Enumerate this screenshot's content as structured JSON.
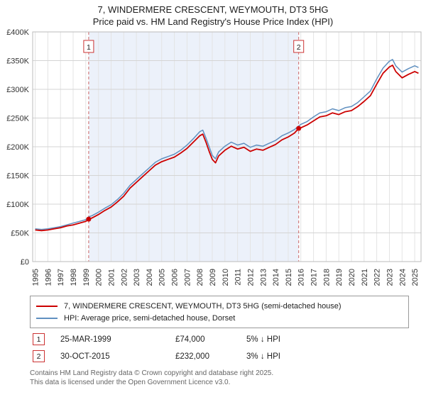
{
  "title_line1": "7, WINDERMERE CRESCENT, WEYMOUTH, DT3 5HG",
  "title_line2": "Price paid vs. HM Land Registry's House Price Index (HPI)",
  "chart_data": {
    "type": "line",
    "title": "7, WINDERMERE CRESCENT, WEYMOUTH, DT3 5HG",
    "subtitle": "Price paid vs. HM Land Registry's House Price Index (HPI)",
    "xlabel": "",
    "ylabel": "Price (GBP)",
    "xlim": [
      1994.8,
      2025.5
    ],
    "ylim": [
      0,
      400
    ],
    "grid": true,
    "legend_position": "bottom",
    "band_color": "#ecf1fa",
    "grid_color": "#d4d4d4",
    "minor_grid_color": "#e4e4e4",
    "y_ticks": [
      {
        "v": 0,
        "label": "£0"
      },
      {
        "v": 50,
        "label": "£50K"
      },
      {
        "v": 100,
        "label": "£100K"
      },
      {
        "v": 150,
        "label": "£150K"
      },
      {
        "v": 200,
        "label": "£200K"
      },
      {
        "v": 250,
        "label": "£250K"
      },
      {
        "v": 300,
        "label": "£300K"
      },
      {
        "v": 350,
        "label": "£350K"
      },
      {
        "v": 400,
        "label": "£400K"
      }
    ],
    "x_years": [
      1995,
      1996,
      1997,
      1998,
      1999,
      2000,
      2001,
      2002,
      2003,
      2004,
      2005,
      2006,
      2007,
      2008,
      2009,
      2010,
      2011,
      2012,
      2013,
      2014,
      2015,
      2016,
      2017,
      2018,
      2019,
      2020,
      2021,
      2022,
      2023,
      2024,
      2025
    ],
    "series": [
      {
        "name": "7, WINDERMERE CRESCENT, WEYMOUTH, DT3 5HG (semi-detached house)",
        "color": "#cc0000",
        "width": 1.8,
        "points": [
          [
            1995.0,
            55
          ],
          [
            1995.5,
            54
          ],
          [
            1996.0,
            55
          ],
          [
            1996.5,
            57
          ],
          [
            1997.0,
            59
          ],
          [
            1997.5,
            62
          ],
          [
            1998.0,
            64
          ],
          [
            1998.5,
            67
          ],
          [
            1999.0,
            70
          ],
          [
            1999.25,
            74
          ],
          [
            1999.5,
            76
          ],
          [
            2000.0,
            82
          ],
          [
            2000.5,
            89
          ],
          [
            2001.0,
            95
          ],
          [
            2001.5,
            104
          ],
          [
            2002.0,
            114
          ],
          [
            2002.5,
            128
          ],
          [
            2003.0,
            138
          ],
          [
            2003.5,
            148
          ],
          [
            2004.0,
            158
          ],
          [
            2004.5,
            168
          ],
          [
            2005.0,
            174
          ],
          [
            2005.5,
            178
          ],
          [
            2006.0,
            182
          ],
          [
            2006.5,
            189
          ],
          [
            2007.0,
            197
          ],
          [
            2007.5,
            208
          ],
          [
            2008.0,
            219
          ],
          [
            2008.25,
            222
          ],
          [
            2008.5,
            208
          ],
          [
            2008.75,
            192
          ],
          [
            2009.0,
            178
          ],
          [
            2009.25,
            172
          ],
          [
            2009.5,
            184
          ],
          [
            2010.0,
            194
          ],
          [
            2010.5,
            201
          ],
          [
            2011.0,
            196
          ],
          [
            2011.5,
            199
          ],
          [
            2012.0,
            192
          ],
          [
            2012.5,
            196
          ],
          [
            2013.0,
            194
          ],
          [
            2013.5,
            199
          ],
          [
            2014.0,
            204
          ],
          [
            2014.5,
            212
          ],
          [
            2015.0,
            217
          ],
          [
            2015.5,
            224
          ],
          [
            2015.83,
            232
          ],
          [
            2016.0,
            233
          ],
          [
            2016.5,
            238
          ],
          [
            2017.0,
            245
          ],
          [
            2017.5,
            252
          ],
          [
            2018.0,
            254
          ],
          [
            2018.5,
            259
          ],
          [
            2019.0,
            256
          ],
          [
            2019.5,
            261
          ],
          [
            2020.0,
            263
          ],
          [
            2020.5,
            270
          ],
          [
            2021.0,
            279
          ],
          [
            2021.5,
            289
          ],
          [
            2022.0,
            309
          ],
          [
            2022.5,
            328
          ],
          [
            2023.0,
            339
          ],
          [
            2023.25,
            342
          ],
          [
            2023.5,
            331
          ],
          [
            2024.0,
            320
          ],
          [
            2024.5,
            326
          ],
          [
            2025.0,
            331
          ],
          [
            2025.3,
            328
          ]
        ]
      },
      {
        "name": "HPI: Average price, semi-detached house, Dorset",
        "color": "#6090c0",
        "width": 1.5,
        "points": [
          [
            1995.0,
            57
          ],
          [
            1995.5,
            56
          ],
          [
            1996.0,
            57
          ],
          [
            1996.5,
            59
          ],
          [
            1997.0,
            61
          ],
          [
            1997.5,
            64
          ],
          [
            1998.0,
            67
          ],
          [
            1998.5,
            70
          ],
          [
            1999.0,
            73
          ],
          [
            1999.25,
            78
          ],
          [
            1999.5,
            80
          ],
          [
            2000.0,
            86
          ],
          [
            2000.5,
            93
          ],
          [
            2001.0,
            99
          ],
          [
            2001.5,
            108
          ],
          [
            2002.0,
            119
          ],
          [
            2002.5,
            133
          ],
          [
            2003.0,
            143
          ],
          [
            2003.5,
            153
          ],
          [
            2004.0,
            163
          ],
          [
            2004.5,
            173
          ],
          [
            2005.0,
            179
          ],
          [
            2005.5,
            183
          ],
          [
            2006.0,
            187
          ],
          [
            2006.5,
            194
          ],
          [
            2007.0,
            203
          ],
          [
            2007.5,
            214
          ],
          [
            2008.0,
            226
          ],
          [
            2008.25,
            229
          ],
          [
            2008.5,
            215
          ],
          [
            2008.75,
            200
          ],
          [
            2009.0,
            185
          ],
          [
            2009.25,
            179
          ],
          [
            2009.5,
            191
          ],
          [
            2010.0,
            201
          ],
          [
            2010.5,
            208
          ],
          [
            2011.0,
            203
          ],
          [
            2011.5,
            206
          ],
          [
            2012.0,
            199
          ],
          [
            2012.5,
            203
          ],
          [
            2013.0,
            201
          ],
          [
            2013.5,
            206
          ],
          [
            2014.0,
            211
          ],
          [
            2014.5,
            219
          ],
          [
            2015.0,
            224
          ],
          [
            2015.5,
            230
          ],
          [
            2015.83,
            236
          ],
          [
            2016.0,
            239
          ],
          [
            2016.5,
            244
          ],
          [
            2017.0,
            252
          ],
          [
            2017.5,
            259
          ],
          [
            2018.0,
            261
          ],
          [
            2018.5,
            266
          ],
          [
            2019.0,
            263
          ],
          [
            2019.5,
            268
          ],
          [
            2020.0,
            270
          ],
          [
            2020.5,
            277
          ],
          [
            2021.0,
            287
          ],
          [
            2021.5,
            297
          ],
          [
            2022.0,
            318
          ],
          [
            2022.5,
            337
          ],
          [
            2023.0,
            349
          ],
          [
            2023.25,
            352
          ],
          [
            2023.5,
            341
          ],
          [
            2024.0,
            330
          ],
          [
            2024.5,
            336
          ],
          [
            2025.0,
            341
          ],
          [
            2025.3,
            338
          ]
        ]
      }
    ],
    "sales": [
      {
        "n": "1",
        "x": 1999.23,
        "y": 74,
        "date": "25-MAR-1999",
        "price": "£74,000",
        "hpi": "5% ↓ HPI"
      },
      {
        "n": "2",
        "x": 2015.83,
        "y": 232,
        "date": "30-OCT-2015",
        "price": "£232,000",
        "hpi": "3% ↓ HPI"
      }
    ],
    "dashed_line_color": "#cc6666",
    "marker_color": "#cc0000"
  },
  "footer_line1": "Contains HM Land Registry data © Crown copyright and database right 2025.",
  "footer_line2": "This data is licensed under the Open Government Licence v3.0."
}
